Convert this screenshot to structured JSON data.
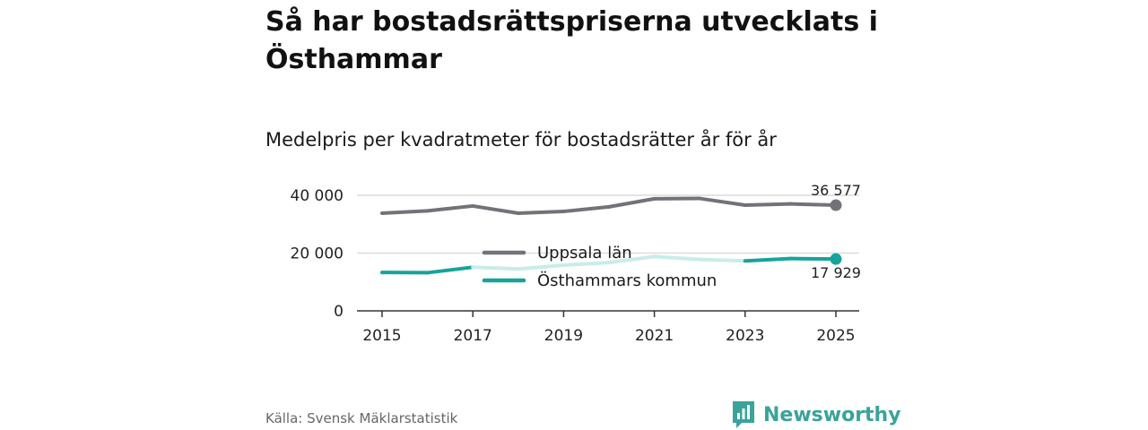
{
  "header": {
    "title": "Så har bostadsrättspriserna utvecklats i Östhammar",
    "subtitle": "Medelpris per kvadratmeter för bostadsrätter år för år"
  },
  "footer": {
    "source": "Källa: Svensk Mäklarstatistik",
    "brand": "Newsworthy"
  },
  "colors": {
    "uppsala": "#737278",
    "osthammar": "#16a39a",
    "osthammar_faded": "#c9ecea",
    "grid": "#dcdcdc",
    "axis": "#333333"
  },
  "chart_data": {
    "type": "line",
    "title": "Medelpris per kvadratmeter för bostadsrätter år för år",
    "xlabel": "",
    "ylabel": "",
    "x": [
      2015,
      2016,
      2017,
      2018,
      2019,
      2020,
      2021,
      2022,
      2023,
      2024,
      2025
    ],
    "xticks": [
      "2015",
      "2017",
      "2019",
      "2021",
      "2023",
      "2025"
    ],
    "yticks": [
      "0",
      "20 000",
      "40 000"
    ],
    "ylim": [
      0,
      40000
    ],
    "legend_position": "center",
    "series": [
      {
        "name": "Uppsala län",
        "values": [
          33800,
          34600,
          36300,
          33800,
          34400,
          36000,
          38800,
          38900,
          36600,
          37000,
          36577
        ],
        "end_label": "36 577"
      },
      {
        "name": "Östhammars kommun",
        "values": [
          13300,
          13200,
          15100,
          14500,
          15800,
          16700,
          18800,
          17800,
          17300,
          18100,
          17929
        ],
        "end_label": "17 929",
        "faded_segments": [
          [
            2017,
            2023
          ]
        ]
      }
    ]
  }
}
